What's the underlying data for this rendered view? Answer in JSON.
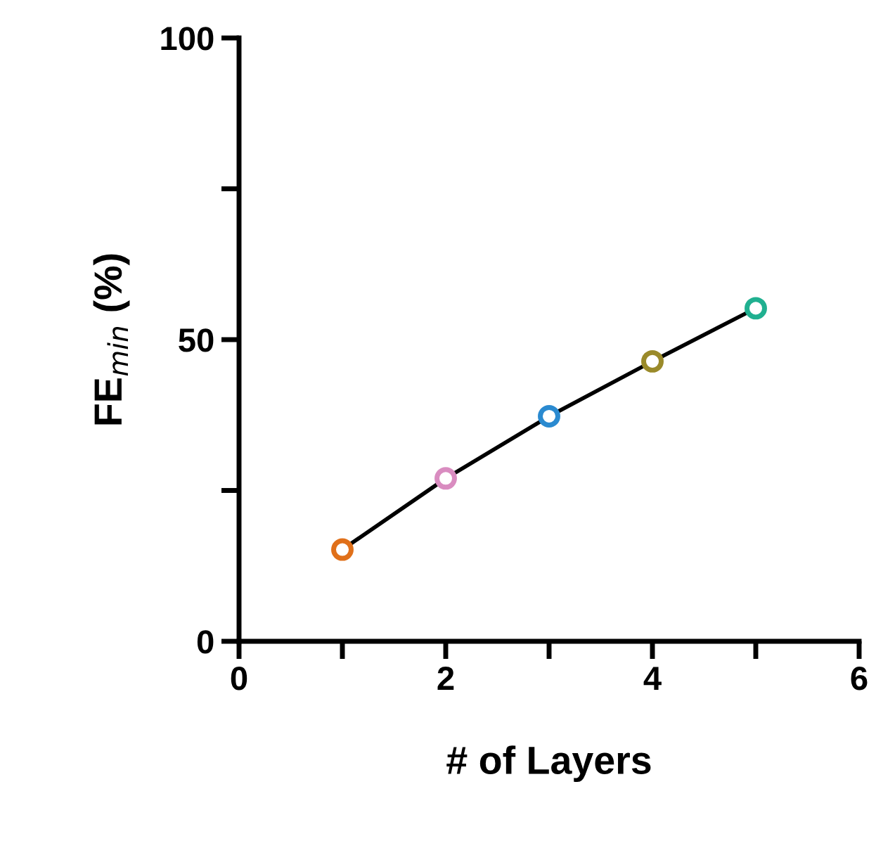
{
  "chart_data": {
    "type": "line",
    "xlabel": "# of Layers",
    "ylabel": "FE$_{min}$ (%)",
    "x": [
      1,
      2,
      3,
      4,
      5
    ],
    "series": [
      {
        "color": "#000000",
        "colors": [
          "#e0701a",
          "#d98cc0",
          "#2a8ad0",
          "#9a8a2a",
          "#20b090"
        ],
        "values": [
          15.2,
          27.0,
          37.3,
          46.4,
          55.2
        ]
      }
    ],
    "xlim": [
      0,
      6
    ],
    "ylim": [
      0,
      100
    ],
    "xticks": [
      0,
      {
        "value": 1,
        "label": null
      },
      2,
      {
        "value": 3,
        "label": null
      },
      4,
      {
        "value": 5,
        "label": null
      },
      6
    ],
    "yticks": [
      0,
      {
        "value": 25,
        "label": null
      },
      50,
      {
        "value": 75,
        "label": null
      },
      100
    ],
    "marker": "circle",
    "line_style": "solid",
    "grid": false,
    "legend": false
  }
}
